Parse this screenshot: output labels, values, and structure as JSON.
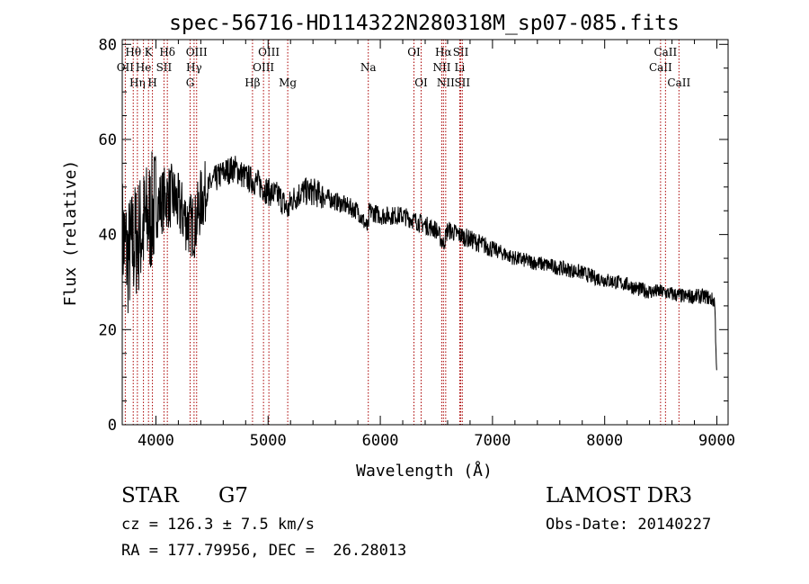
{
  "chart_data": {
    "type": "line",
    "title": "spec-56716-HD114322N280318M_sp07-085.fits",
    "xlabel": "Wavelength (Å)",
    "ylabel": "Flux (relative)",
    "xlim": [
      3700,
      9100
    ],
    "ylim": [
      0,
      81
    ],
    "x_ticks": [
      4000,
      5000,
      6000,
      7000,
      8000,
      9000
    ],
    "y_ticks": [
      0,
      20,
      40,
      60,
      80
    ],
    "series": [
      {
        "name": "spectrum",
        "color": "#000000",
        "x": [
          3700,
          3750,
          3800,
          3850,
          3900,
          3950,
          4000,
          4050,
          4100,
          4150,
          4200,
          4250,
          4300,
          4350,
          4400,
          4500,
          4600,
          4700,
          4800,
          4900,
          5000,
          5100,
          5180,
          5200,
          5300,
          5400,
          5500,
          5600,
          5700,
          5800,
          5893,
          5900,
          6000,
          6100,
          6200,
          6300,
          6400,
          6500,
          6563,
          6600,
          6700,
          6800,
          6900,
          7000,
          7100,
          7200,
          7300,
          7400,
          7500,
          7600,
          7700,
          7800,
          7900,
          8000,
          8100,
          8200,
          8300,
          8400,
          8500,
          8600,
          8700,
          8800,
          8900,
          8980,
          9000
        ],
        "y": [
          40,
          35,
          38,
          40,
          42,
          44,
          46,
          47,
          48,
          48,
          46,
          44,
          42,
          42,
          47,
          51,
          53,
          54,
          52,
          51,
          49,
          48,
          45,
          47,
          49,
          49,
          48,
          47,
          46,
          45,
          41,
          45,
          44,
          44,
          44,
          43,
          42,
          41,
          38,
          41,
          40,
          39,
          38,
          37,
          36,
          35,
          34.5,
          34,
          33.5,
          33,
          32.5,
          32,
          31,
          30.5,
          30,
          29.5,
          28.5,
          28,
          28,
          27.5,
          27,
          27,
          27,
          26,
          10
        ]
      }
    ]
  },
  "lines": [
    {
      "label": "OII",
      "wl": 3727,
      "row": 2
    },
    {
      "label": "Hθ",
      "wl": 3798,
      "row": 1
    },
    {
      "label": "Hη",
      "wl": 3835,
      "row": 3
    },
    {
      "label": "He",
      "wl": 3889,
      "row": 2
    },
    {
      "label": "K",
      "wl": 3934,
      "row": 1
    },
    {
      "label": "H",
      "wl": 3969,
      "row": 3
    },
    {
      "label": "SII",
      "wl": 4072,
      "row": 2
    },
    {
      "label": "Hδ",
      "wl": 4102,
      "row": 1
    },
    {
      "label": "G",
      "wl": 4305,
      "row": 3
    },
    {
      "label": "Hγ",
      "wl": 4340,
      "row": 2
    },
    {
      "label": "OIII",
      "wl": 4363,
      "row": 1
    },
    {
      "label": "Hβ",
      "wl": 4861,
      "row": 3
    },
    {
      "label": "OIII",
      "wl": 4959,
      "row": 2
    },
    {
      "label": "OIII",
      "wl": 5007,
      "row": 1
    },
    {
      "label": "Mg",
      "wl": 5175,
      "row": 3
    },
    {
      "label": "Na",
      "wl": 5893,
      "row": 2
    },
    {
      "label": "OI",
      "wl": 6300,
      "row": 1
    },
    {
      "label": "OI",
      "wl": 6364,
      "row": 3
    },
    {
      "label": "NII",
      "wl": 6548,
      "row": 2
    },
    {
      "label": "Hα",
      "wl": 6563,
      "row": 1
    },
    {
      "label": "NII",
      "wl": 6583,
      "row": 3
    },
    {
      "label": "Li",
      "wl": 6708,
      "row": 2
    },
    {
      "label": "SII",
      "wl": 6717,
      "row": 1
    },
    {
      "label": "SII",
      "wl": 6731,
      "row": 3
    },
    {
      "label": "CaII",
      "wl": 8498,
      "row": 2
    },
    {
      "label": "CaII",
      "wl": 8542,
      "row": 1
    },
    {
      "label": "CaII",
      "wl": 8662,
      "row": 3
    }
  ],
  "info": {
    "class_label": "STAR",
    "subclass": "G7",
    "cz": "cz = 126.3 ± 7.5 km/s",
    "radec": "RA = 177.79956, DEC =  26.28013",
    "survey": "LAMOST DR3",
    "obs_date": "Obs-Date: 20140227"
  },
  "colors": {
    "line_marker": "#aa0000",
    "spectrum": "#000000",
    "axes": "#000000"
  }
}
